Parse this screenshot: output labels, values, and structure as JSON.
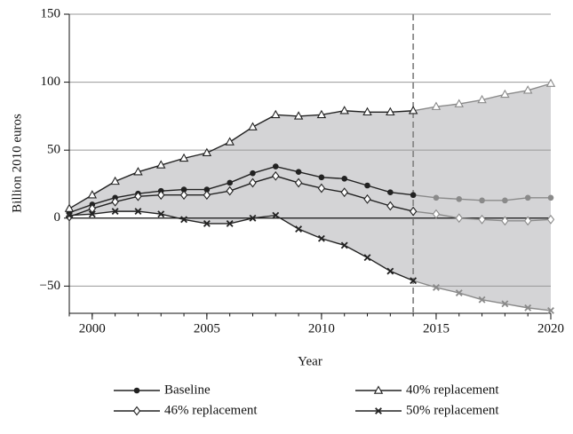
{
  "chart_data": {
    "type": "line",
    "x_label": "Year",
    "y_label": "Billion 2010 euros",
    "x": [
      1999,
      2000,
      2001,
      2002,
      2003,
      2004,
      2005,
      2006,
      2007,
      2008,
      2009,
      2010,
      2011,
      2012,
      2013,
      2014,
      2015,
      2016,
      2017,
      2018,
      2019,
      2020
    ],
    "series": [
      {
        "name": "Baseline",
        "marker": "circle",
        "color": "#222222",
        "projection_color": "#8a8a8a",
        "values": [
          4,
          10,
          15,
          18,
          20,
          21,
          21,
          26,
          33,
          38,
          34,
          30,
          29,
          24,
          19,
          17,
          15,
          14,
          13,
          13,
          15,
          15
        ]
      },
      {
        "name": "40% replacement",
        "marker": "triangle",
        "color": "#222222",
        "projection_color": "#8a8a8a",
        "values": [
          7,
          17,
          27,
          34,
          39,
          44,
          48,
          56,
          67,
          76,
          75,
          76,
          79,
          78,
          78,
          79,
          82,
          84,
          87,
          91,
          94,
          99
        ]
      },
      {
        "name": "46% replacement",
        "marker": "diamond",
        "color": "#222222",
        "projection_color": "#8a8a8a",
        "values": [
          1,
          7,
          12,
          16,
          17,
          17,
          17,
          20,
          26,
          31,
          26,
          22,
          19,
          14,
          9,
          5,
          3,
          0,
          -1,
          -2,
          -2,
          -1
        ]
      },
      {
        "name": "50% replacement",
        "marker": "x",
        "color": "#222222",
        "projection_color": "#8a8a8a",
        "values": [
          2,
          3,
          5,
          5,
          3,
          -1,
          -4,
          -4,
          0,
          2,
          -8,
          -15,
          -20,
          -29,
          -39,
          -46,
          -51,
          -55,
          -60,
          -63,
          -66,
          -68
        ]
      }
    ],
    "projection_start": 2014,
    "area_color": "#d4d4d6",
    "xlim": [
      1999,
      2020
    ],
    "xticks": [
      2000,
      2005,
      2010,
      2015,
      2020
    ],
    "ylim": [
      -70,
      150
    ],
    "yticks": [
      150,
      100,
      50,
      0,
      {
        "value": -50,
        "label": "−50"
      }
    ],
    "grid": true
  }
}
